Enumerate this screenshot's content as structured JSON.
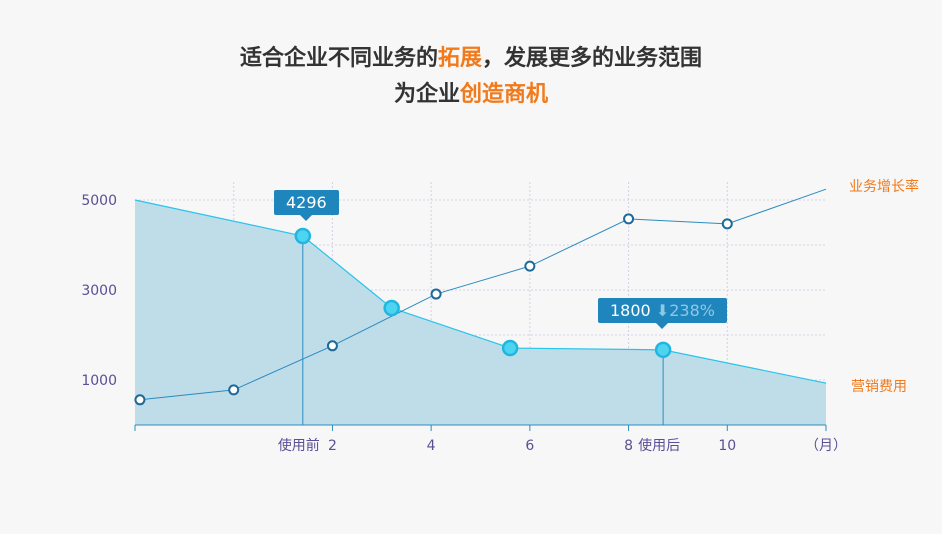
{
  "header": {
    "line1_a": "适合企业不同业务的",
    "line1_hl": "拓展",
    "line1_b": "，发展更多的业务范围",
    "line2_a": "为企业",
    "line2_hl": "创造商机"
  },
  "chart_data": {
    "type": "line",
    "x_ticks": [
      {
        "x": 2,
        "label": "2"
      },
      {
        "x": 4,
        "label": "4"
      },
      {
        "x": 6,
        "label": "6"
      },
      {
        "x": 8,
        "label": "8"
      },
      {
        "x": 10,
        "label": "10"
      }
    ],
    "x_markers": [
      {
        "x": 1.4,
        "label": "使用前"
      },
      {
        "x": 8.7,
        "label": "使用后"
      }
    ],
    "x_unit": "（月）",
    "xlim": [
      -2,
      12
    ],
    "y_ticks": [
      1000,
      3000,
      5000
    ],
    "ylim": [
      0,
      5000
    ],
    "grid": true,
    "series": [
      {
        "name": "营销费用",
        "type": "area",
        "color": "#29c4ea",
        "x": [
          -2,
          1.4,
          3.2,
          5.6,
          8.7,
          12
        ],
        "values": [
          5000,
          4200,
          2600,
          1710,
          1670,
          930
        ]
      },
      {
        "name": "业务增长率",
        "type": "line",
        "color": "#2b8bc0",
        "x": [
          -1.9,
          0,
          2,
          4.1,
          6,
          8,
          10,
          12
        ],
        "values": [
          560,
          780,
          1760,
          2910,
          3530,
          4580,
          4470,
          5240
        ]
      }
    ],
    "tooltips": [
      {
        "value": "4296"
      },
      {
        "value": "1800",
        "arrow": "⬇",
        "pct": "238%"
      }
    ],
    "colors": {
      "accent": "#f07a1c",
      "area_fill": "#bfdde9",
      "tooltip": "#1f86bd",
      "axis_text": "#5b4f96"
    }
  }
}
